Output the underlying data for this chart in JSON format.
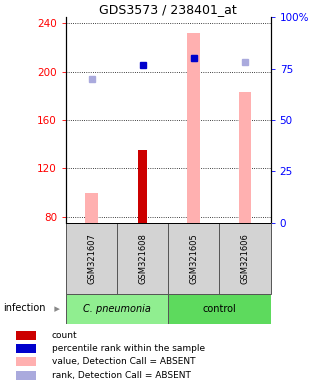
{
  "title": "GDS3573 / 238401_at",
  "samples": [
    "GSM321607",
    "GSM321608",
    "GSM321605",
    "GSM321606"
  ],
  "ylim_left": [
    75,
    245
  ],
  "ylim_right": [
    0,
    100
  ],
  "yticks_left": [
    80,
    120,
    160,
    200,
    240
  ],
  "yticks_right": [
    0,
    25,
    50,
    75,
    100
  ],
  "ytick_labels_right": [
    "0",
    "25",
    "50",
    "75",
    "100%"
  ],
  "pink_bar_values": [
    100,
    null,
    232,
    183
  ],
  "pink_bar_color": "#ffb0b0",
  "red_bar_values": [
    null,
    135,
    null,
    null
  ],
  "red_bar_color": "#cc0000",
  "blue_sq_pct": [
    null,
    77,
    80,
    null
  ],
  "blue_sq_color": "#0000cc",
  "lblue_sq_pct": [
    70,
    null,
    80,
    78
  ],
  "lblue_sq_color": "#aaaadd",
  "bar_bottom": 75,
  "pink_bar_width": 0.25,
  "red_bar_width": 0.18,
  "group_label": "infection",
  "group1_label": "C. pneumonia",
  "group2_label": "control",
  "group1_color": "#90ee90",
  "group2_color": "#5dda5d",
  "legend_items": [
    {
      "color": "#cc0000",
      "label": "count"
    },
    {
      "color": "#0000cc",
      "label": "percentile rank within the sample"
    },
    {
      "color": "#ffb0b0",
      "label": "value, Detection Call = ABSENT"
    },
    {
      "color": "#aaaadd",
      "label": "rank, Detection Call = ABSENT"
    }
  ]
}
